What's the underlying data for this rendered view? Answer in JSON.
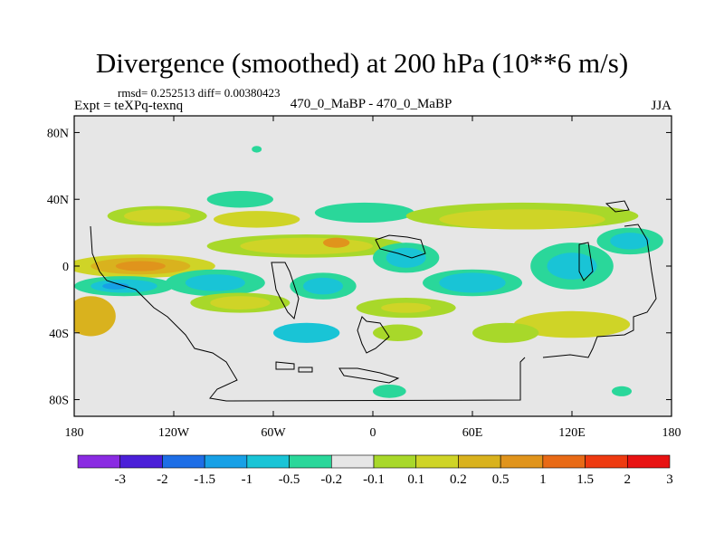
{
  "title": "Divergence (smoothed) at 200 hPa (10**6 m/s)",
  "stats": "rmsd= 0.252513  diff= 0.00380423",
  "left_label": "Expt = teXPq-texnq",
  "center_label": "470_0_MaBP - 470_0_MaBP",
  "right_label": "JJA",
  "colors": {
    "background_field": "#e6e6e6",
    "contour_palette": [
      "#8a2be2",
      "#4b1fd8",
      "#1e6ee6",
      "#17a0e6",
      "#19c4d6",
      "#2ad79a",
      "#e6e6e6",
      "#a8d82a",
      "#cfd427",
      "#d9b21e",
      "#e0941c",
      "#e86a16",
      "#ee3a10",
      "#e81212"
    ]
  },
  "chart_data": {
    "type": "heatmap",
    "title": "Divergence (smoothed) at 200 hPa (10**6 m/s)",
    "xlabel": "",
    "ylabel": "",
    "xlim": [
      -180,
      180
    ],
    "ylim": [
      -90,
      90
    ],
    "x_ticks": [
      {
        "value": -180,
        "label": "180"
      },
      {
        "value": -120,
        "label": "120W"
      },
      {
        "value": -60,
        "label": "60W"
      },
      {
        "value": 0,
        "label": "0"
      },
      {
        "value": 60,
        "label": "60E"
      },
      {
        "value": 120,
        "label": "120E"
      },
      {
        "value": 180,
        "label": "180"
      }
    ],
    "y_ticks": [
      {
        "value": 80,
        "label": "80N"
      },
      {
        "value": 40,
        "label": "40N"
      },
      {
        "value": 0,
        "label": "0"
      },
      {
        "value": -40,
        "label": "40S"
      },
      {
        "value": -80,
        "label": "80S"
      }
    ],
    "colorbar_labels": [
      "-3",
      "-2",
      "-1.5",
      "-1",
      "-0.5",
      "-0.2",
      "-0.1",
      "0.1",
      "0.2",
      "0.5",
      "1",
      "1.5",
      "2",
      "3"
    ],
    "regions": [
      {
        "lon": -130,
        "lat": 30,
        "rlon": 30,
        "rlat": 6,
        "color": "#a8d82a"
      },
      {
        "lon": -130,
        "lat": 30,
        "rlon": 20,
        "rlat": 4,
        "color": "#cfd427"
      },
      {
        "lon": -80,
        "lat": 40,
        "rlon": 20,
        "rlat": 5,
        "color": "#2ad79a"
      },
      {
        "lon": -70,
        "lat": 28,
        "rlon": 26,
        "rlat": 5,
        "color": "#cfd427"
      },
      {
        "lon": -5,
        "lat": 32,
        "rlon": 30,
        "rlat": 6,
        "color": "#2ad79a"
      },
      {
        "lon": 90,
        "lat": 30,
        "rlon": 70,
        "rlat": 8,
        "color": "#a8d82a"
      },
      {
        "lon": 90,
        "lat": 28,
        "rlon": 50,
        "rlat": 6,
        "color": "#cfd427"
      },
      {
        "lon": -40,
        "lat": 12,
        "rlon": 60,
        "rlat": 7,
        "color": "#a8d82a"
      },
      {
        "lon": -40,
        "lat": 12,
        "rlon": 40,
        "rlat": 5,
        "color": "#cfd427"
      },
      {
        "lon": -22,
        "lat": 14,
        "rlon": 8,
        "rlat": 3,
        "color": "#e0941c"
      },
      {
        "lon": -140,
        "lat": 0,
        "rlon": 45,
        "rlat": 7,
        "color": "#cfd427"
      },
      {
        "lon": -140,
        "lat": 0,
        "rlon": 30,
        "rlat": 5,
        "color": "#d9b21e"
      },
      {
        "lon": -140,
        "lat": 0,
        "rlon": 15,
        "rlat": 3,
        "color": "#e0941c"
      },
      {
        "lon": -150,
        "lat": -12,
        "rlon": 30,
        "rlat": 6,
        "color": "#2ad79a"
      },
      {
        "lon": -150,
        "lat": -12,
        "rlon": 20,
        "rlat": 4,
        "color": "#19c4d6"
      },
      {
        "lon": -155,
        "lat": -12,
        "rlon": 8,
        "rlat": 2,
        "color": "#17a0e6"
      },
      {
        "lon": -95,
        "lat": -10,
        "rlon": 30,
        "rlat": 8,
        "color": "#2ad79a"
      },
      {
        "lon": -95,
        "lat": -10,
        "rlon": 18,
        "rlat": 5,
        "color": "#19c4d6"
      },
      {
        "lon": -30,
        "lat": -12,
        "rlon": 20,
        "rlat": 8,
        "color": "#2ad79a"
      },
      {
        "lon": -30,
        "lat": -12,
        "rlon": 12,
        "rlat": 5,
        "color": "#19c4d6"
      },
      {
        "lon": 20,
        "lat": 5,
        "rlon": 20,
        "rlat": 9,
        "color": "#2ad79a"
      },
      {
        "lon": 20,
        "lat": 5,
        "rlon": 12,
        "rlat": 6,
        "color": "#19c4d6"
      },
      {
        "lon": 60,
        "lat": -10,
        "rlon": 30,
        "rlat": 8,
        "color": "#2ad79a"
      },
      {
        "lon": 60,
        "lat": -10,
        "rlon": 20,
        "rlat": 6,
        "color": "#19c4d6"
      },
      {
        "lon": 120,
        "lat": 0,
        "rlon": 25,
        "rlat": 14,
        "color": "#2ad79a"
      },
      {
        "lon": 120,
        "lat": 0,
        "rlon": 15,
        "rlat": 8,
        "color": "#19c4d6"
      },
      {
        "lon": 155,
        "lat": 15,
        "rlon": 20,
        "rlat": 8,
        "color": "#2ad79a"
      },
      {
        "lon": 155,
        "lat": 15,
        "rlon": 12,
        "rlat": 5,
        "color": "#19c4d6"
      },
      {
        "lon": 20,
        "lat": -25,
        "rlon": 30,
        "rlat": 6,
        "color": "#a8d82a"
      },
      {
        "lon": 20,
        "lat": -25,
        "rlon": 15,
        "rlat": 3,
        "color": "#cfd427"
      },
      {
        "lon": -80,
        "lat": -22,
        "rlon": 30,
        "rlat": 6,
        "color": "#a8d82a"
      },
      {
        "lon": -80,
        "lat": -22,
        "rlon": 18,
        "rlat": 4,
        "color": "#cfd427"
      },
      {
        "lon": -170,
        "lat": -30,
        "rlon": 15,
        "rlat": 12,
        "color": "#d9b21e"
      },
      {
        "lon": 120,
        "lat": -35,
        "rlon": 35,
        "rlat": 8,
        "color": "#cfd427"
      },
      {
        "lon": 80,
        "lat": -40,
        "rlon": 20,
        "rlat": 6,
        "color": "#a8d82a"
      },
      {
        "lon": -40,
        "lat": -40,
        "rlon": 20,
        "rlat": 6,
        "color": "#19c4d6"
      },
      {
        "lon": 15,
        "lat": -40,
        "rlon": 15,
        "rlat": 5,
        "color": "#a8d82a"
      },
      {
        "lon": 10,
        "lat": -75,
        "rlon": 10,
        "rlat": 4,
        "color": "#2ad79a"
      },
      {
        "lon": 150,
        "lat": -75,
        "rlon": 6,
        "rlat": 3,
        "color": "#2ad79a"
      },
      {
        "lon": -70,
        "lat": 70,
        "rlon": 3,
        "rlat": 2,
        "color": "#2ad79a"
      }
    ]
  }
}
